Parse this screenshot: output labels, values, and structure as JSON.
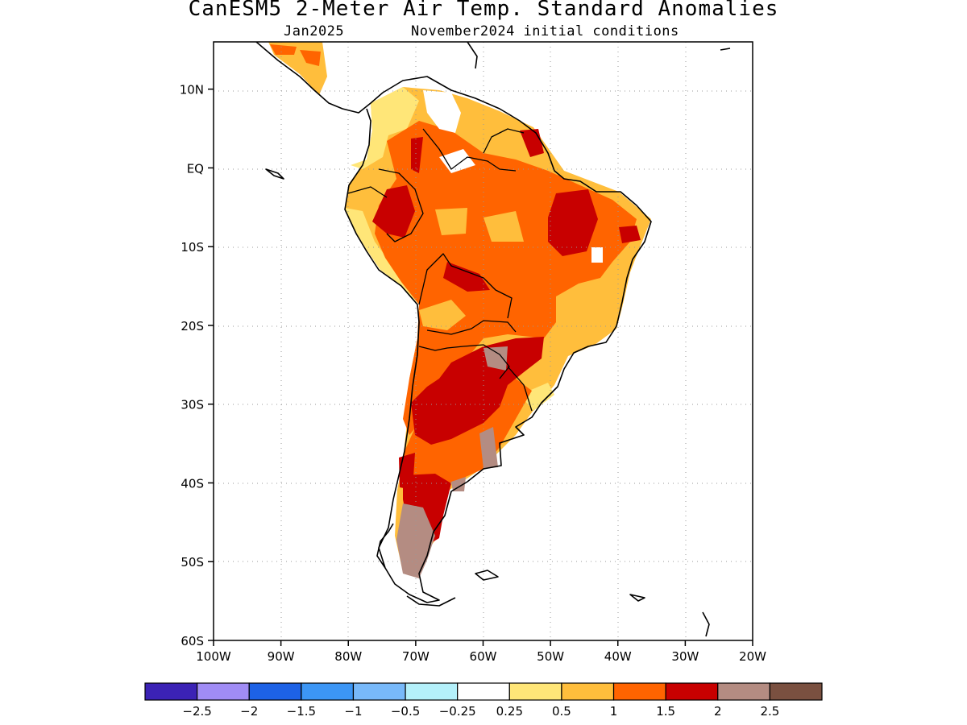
{
  "title": "CanESM5 2-Meter Air Temp. Standard Anomalies",
  "subtitle_left": "Jan2025",
  "subtitle_right": "November2024 initial conditions",
  "lat_ticks": [
    {
      "value": 10,
      "label": "10N"
    },
    {
      "value": 0,
      "label": "EQ"
    },
    {
      "value": -10,
      "label": "10S"
    },
    {
      "value": -20,
      "label": "20S"
    },
    {
      "value": -30,
      "label": "30S"
    },
    {
      "value": -40,
      "label": "40S"
    },
    {
      "value": -50,
      "label": "50S"
    },
    {
      "value": -60,
      "label": "60S"
    }
  ],
  "lon_ticks": [
    {
      "value": -100,
      "label": "100W"
    },
    {
      "value": -90,
      "label": "90W"
    },
    {
      "value": -80,
      "label": "80W"
    },
    {
      "value": -70,
      "label": "70W"
    },
    {
      "value": -60,
      "label": "60W"
    },
    {
      "value": -50,
      "label": "50W"
    },
    {
      "value": -40,
      "label": "40W"
    },
    {
      "value": -30,
      "label": "30W"
    },
    {
      "value": -20,
      "label": "20W"
    }
  ],
  "map_extent": {
    "lon": [
      -100,
      -20
    ],
    "lat": [
      -60,
      16
    ]
  },
  "colorbar": {
    "colors": [
      "#3b22b5",
      "#a08cf5",
      "#1d62e6",
      "#3c96f5",
      "#78b9fa",
      "#b4f0fa",
      "#ffffff",
      "#ffe678",
      "#ffbe3c",
      "#ff6400",
      "#c80000",
      "#b48c82",
      "#7a5040"
    ],
    "labels": [
      "-2.5",
      "-2",
      "-1.5",
      "-1",
      "-0.5",
      "-0.25",
      "0.25",
      "0.5",
      "1",
      "1.5",
      "2",
      "2.5"
    ]
  }
}
